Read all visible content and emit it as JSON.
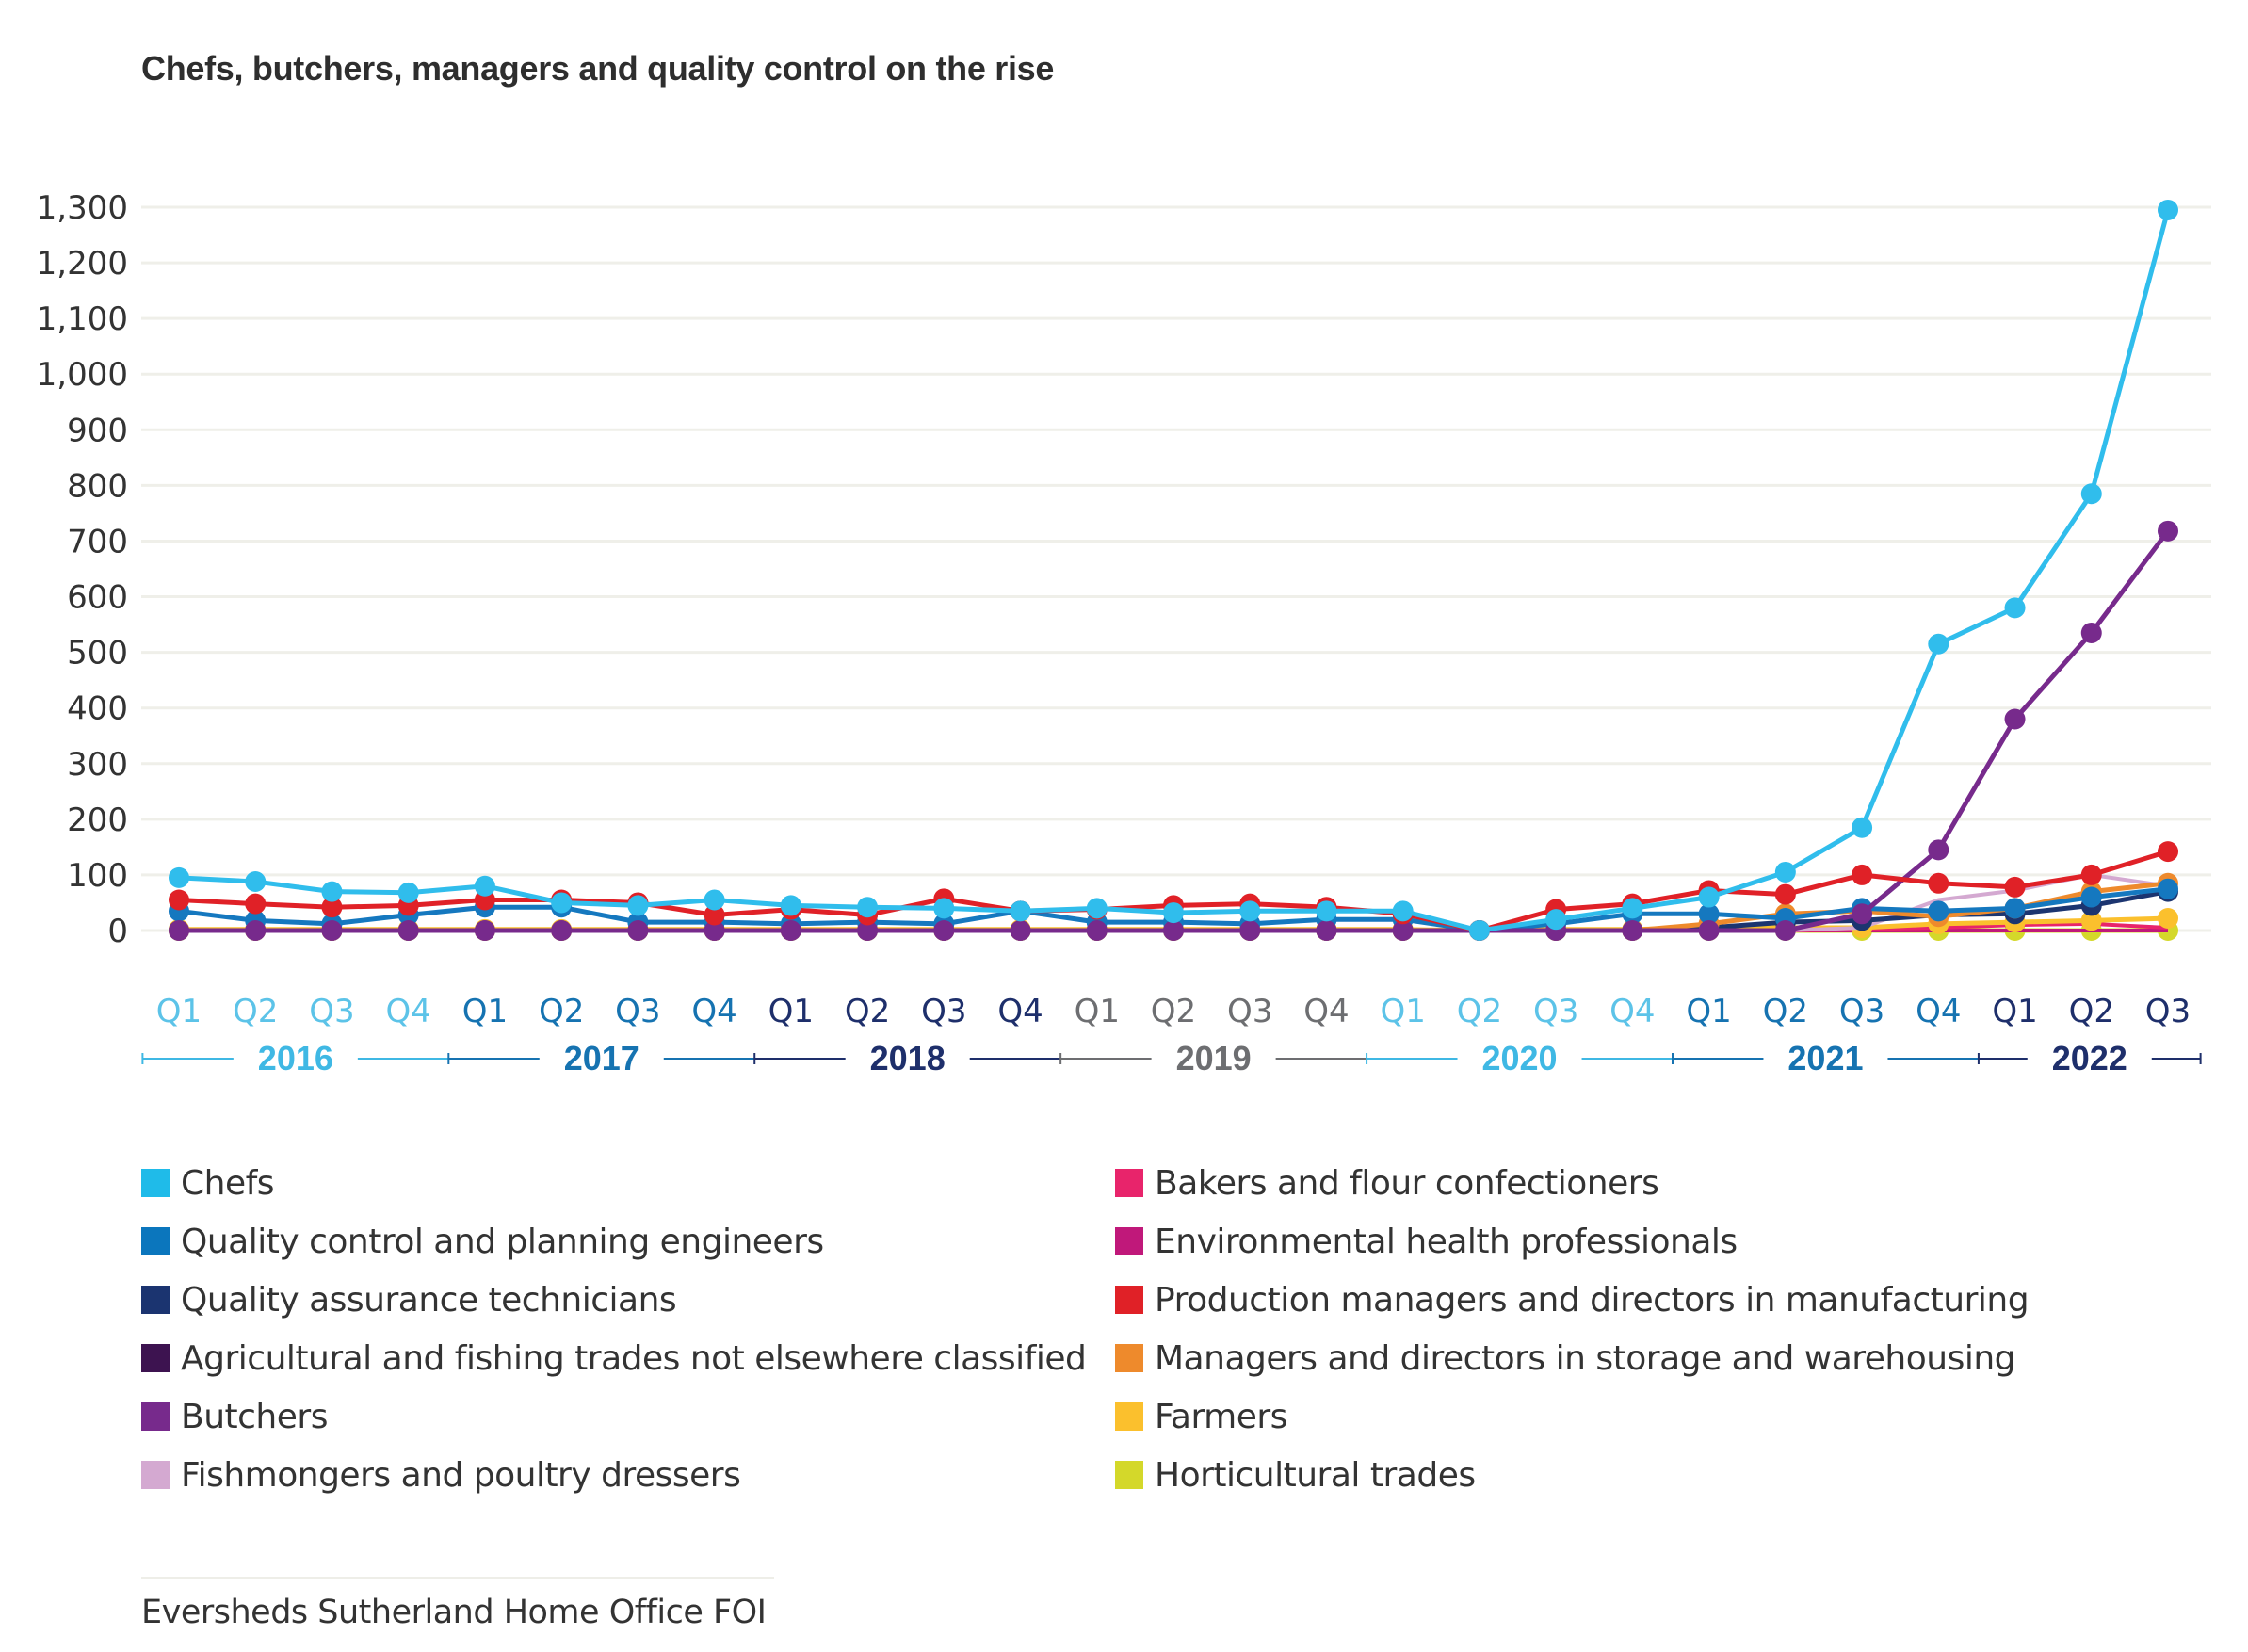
{
  "title": "Chefs, butchers, managers and quality control on the rise",
  "source": "Eversheds Sutherland Home Office FOI",
  "chart_data": {
    "type": "line",
    "title": "Chefs, butchers, managers and quality control on the rise",
    "xlabel": "",
    "ylabel": "",
    "ylim": [
      0,
      1300
    ],
    "yticks": [
      0,
      100,
      200,
      300,
      400,
      500,
      600,
      700,
      800,
      900,
      1000,
      1100,
      1200,
      1300
    ],
    "ytick_labels": [
      "0",
      "100",
      "200",
      "300",
      "400",
      "500",
      "600",
      "700",
      "800",
      "900",
      "1,000",
      "1,100",
      "1,200",
      "1,300"
    ],
    "grid": true,
    "legend_position": "bottom",
    "years": [
      {
        "label": "2016",
        "color": "#3fb8e4",
        "quarters": [
          "Q1",
          "Q2",
          "Q3",
          "Q4"
        ]
      },
      {
        "label": "2017",
        "color": "#1673b1",
        "quarters": [
          "Q1",
          "Q2",
          "Q3",
          "Q4"
        ]
      },
      {
        "label": "2018",
        "color": "#1e2f6b",
        "quarters": [
          "Q1",
          "Q2",
          "Q3",
          "Q4"
        ]
      },
      {
        "label": "2019",
        "color": "#6d6e71",
        "quarters": [
          "Q1",
          "Q2",
          "Q3",
          "Q4"
        ]
      },
      {
        "label": "2020",
        "color": "#3fb8e4",
        "quarters": [
          "Q1",
          "Q2",
          "Q3",
          "Q4"
        ]
      },
      {
        "label": "2021",
        "color": "#1673b1",
        "quarters": [
          "Q1",
          "Q2",
          "Q3",
          "Q4"
        ]
      },
      {
        "label": "2022",
        "color": "#1e2f6b",
        "quarters": [
          "Q1",
          "Q2",
          "Q3"
        ]
      }
    ],
    "x": [
      "2016 Q1",
      "2016 Q2",
      "2016 Q3",
      "2016 Q4",
      "2017 Q1",
      "2017 Q2",
      "2017 Q3",
      "2017 Q4",
      "2018 Q1",
      "2018 Q2",
      "2018 Q3",
      "2018 Q4",
      "2019 Q1",
      "2019 Q2",
      "2019 Q3",
      "2019 Q4",
      "2020 Q1",
      "2020 Q2",
      "2020 Q3",
      "2020 Q4",
      "2021 Q1",
      "2021 Q2",
      "2021 Q3",
      "2021 Q4",
      "2022 Q1",
      "2022 Q2",
      "2022 Q3"
    ],
    "series": [
      {
        "name": "Horticultural trades",
        "color": "#d4d82a",
        "markers": true,
        "values": [
          0,
          0,
          0,
          0,
          0,
          0,
          0,
          0,
          0,
          0,
          0,
          0,
          0,
          0,
          0,
          0,
          0,
          0,
          0,
          0,
          0,
          0,
          0,
          0,
          0,
          0,
          0
        ]
      },
      {
        "name": "Agricultural and fishing trades not elsewhere classified",
        "color": "#3d1350",
        "markers": false,
        "values": [
          0,
          0,
          0,
          0,
          2,
          0,
          0,
          0,
          0,
          0,
          0,
          0,
          0,
          0,
          0,
          0,
          0,
          0,
          0,
          0,
          0,
          0,
          0,
          0,
          0,
          0,
          0
        ]
      },
      {
        "name": "Environmental health professionals",
        "color": "#c0187a",
        "markers": false,
        "values": [
          0,
          0,
          0,
          0,
          0,
          0,
          0,
          0,
          0,
          0,
          0,
          0,
          0,
          0,
          0,
          0,
          0,
          0,
          0,
          0,
          0,
          0,
          0,
          0,
          0,
          0,
          0
        ]
      },
      {
        "name": "Bakers and flour confectioners",
        "color": "#e8246b",
        "markers": false,
        "values": [
          0,
          0,
          0,
          0,
          0,
          0,
          0,
          0,
          0,
          0,
          0,
          0,
          0,
          0,
          0,
          0,
          0,
          0,
          0,
          0,
          0,
          0,
          2,
          5,
          10,
          12,
          5
        ]
      },
      {
        "name": "Farmers",
        "color": "#fbc02d",
        "markers": true,
        "values": [
          2,
          2,
          2,
          2,
          2,
          2,
          2,
          2,
          2,
          2,
          2,
          2,
          2,
          2,
          2,
          2,
          2,
          0,
          2,
          2,
          5,
          5,
          5,
          12,
          15,
          18,
          22
        ]
      },
      {
        "name": "Fishmongers and poultry dressers",
        "color": "#d4a9d1",
        "markers": false,
        "values": [
          0,
          0,
          0,
          0,
          0,
          0,
          0,
          0,
          0,
          0,
          0,
          0,
          0,
          0,
          0,
          0,
          0,
          0,
          0,
          0,
          0,
          0,
          5,
          55,
          72,
          100,
          80
        ]
      },
      {
        "name": "Quality assurance technicians",
        "color": "#1c3570",
        "markers": true,
        "values": [
          0,
          0,
          0,
          0,
          0,
          0,
          0,
          0,
          0,
          0,
          0,
          0,
          0,
          0,
          0,
          0,
          0,
          0,
          0,
          0,
          5,
          15,
          18,
          28,
          30,
          45,
          70
        ]
      },
      {
        "name": "Managers and directors in storage and warehousing",
        "color": "#ee8a2c",
        "markers": true,
        "values": [
          0,
          0,
          0,
          0,
          0,
          0,
          0,
          0,
          0,
          0,
          0,
          0,
          0,
          0,
          0,
          0,
          0,
          0,
          0,
          0,
          12,
          30,
          35,
          25,
          40,
          70,
          85
        ]
      },
      {
        "name": "Quality control and planning engineers",
        "color": "#1578bf",
        "markers": true,
        "values": [
          35,
          18,
          12,
          28,
          42,
          42,
          15,
          15,
          12,
          15,
          12,
          35,
          15,
          15,
          12,
          20,
          20,
          0,
          12,
          30,
          30,
          22,
          40,
          35,
          40,
          60,
          75
        ]
      },
      {
        "name": "Butchers",
        "color": "#772a8c",
        "markers": true,
        "values": [
          0,
          0,
          0,
          0,
          0,
          0,
          0,
          0,
          0,
          0,
          0,
          0,
          0,
          0,
          0,
          0,
          0,
          0,
          0,
          0,
          0,
          0,
          30,
          145,
          380,
          535,
          718
        ]
      },
      {
        "name": "Production managers and directors in manufacturing",
        "color": "#e02127",
        "markers": true,
        "values": [
          55,
          48,
          42,
          45,
          55,
          55,
          50,
          28,
          38,
          28,
          57,
          35,
          38,
          45,
          48,
          42,
          30,
          0,
          38,
          48,
          72,
          65,
          100,
          85,
          78,
          100,
          142
        ]
      },
      {
        "name": "Chefs",
        "color": "#30bdec",
        "markers": true,
        "values": [
          95,
          88,
          70,
          68,
          80,
          50,
          45,
          55,
          45,
          42,
          40,
          35,
          40,
          32,
          35,
          35,
          35,
          0,
          20,
          40,
          60,
          105,
          185,
          515,
          580,
          785,
          1295
        ]
      }
    ]
  },
  "legend": {
    "left": [
      {
        "label": "Chefs",
        "color": "#1fbbe9"
      },
      {
        "label": "Quality control and planning engineers",
        "color": "#0b76bd"
      },
      {
        "label": "Quality assurance technicians",
        "color": "#1b3470"
      },
      {
        "label": "Agricultural and fishing trades not elsewhere classified",
        "color": "#3d1350"
      },
      {
        "label": "Butchers",
        "color": "#772a8c"
      },
      {
        "label": "Fishmongers and poultry dressers",
        "color": "#d4a9d1"
      }
    ],
    "right": [
      {
        "label": "Bakers and flour confectioners",
        "color": "#e8246b"
      },
      {
        "label": "Environmental health professionals",
        "color": "#c0187a"
      },
      {
        "label": "Production managers and directors in manufacturing",
        "color": "#e02127"
      },
      {
        "label": "Managers and directors in storage and warehousing",
        "color": "#ee8a2c"
      },
      {
        "label": "Farmers",
        "color": "#fbc02d"
      },
      {
        "label": "Horticultural trades",
        "color": "#d4d82a"
      }
    ]
  }
}
